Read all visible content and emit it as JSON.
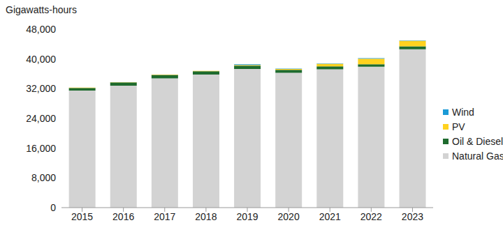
{
  "chart_data": {
    "type": "bar",
    "stacked": true,
    "ylabel": "Gigawatts-hours",
    "categories": [
      "2015",
      "2016",
      "2017",
      "2018",
      "2019",
      "2020",
      "2021",
      "2022",
      "2023"
    ],
    "series": [
      {
        "name": "Natural Gas",
        "color": "#d3d3d3",
        "values": [
          31500,
          32800,
          34800,
          35800,
          37300,
          36300,
          37200,
          37900,
          42600
        ]
      },
      {
        "name": "Oil & Diesel",
        "color": "#1e6b2e",
        "values": [
          700,
          900,
          900,
          900,
          900,
          800,
          800,
          700,
          800
        ]
      },
      {
        "name": "PV",
        "color": "#ffd21f",
        "values": [
          100,
          50,
          100,
          100,
          200,
          200,
          700,
          1500,
          1500
        ]
      },
      {
        "name": "Wind",
        "color": "#1b9ad6",
        "values": [
          0,
          0,
          0,
          0,
          200,
          100,
          100,
          100,
          100
        ]
      }
    ],
    "ylim": [
      0,
      48000
    ],
    "yticks": [
      0,
      {
        "value": 8000,
        "label": "8,000"
      },
      {
        "value": 16000,
        "label": "16,000"
      },
      {
        "value": 24000,
        "label": "24,000"
      },
      {
        "value": 32000,
        "label": "32,000"
      },
      {
        "value": 40000,
        "label": "40,000"
      },
      {
        "value": 48000,
        "label": "48,000"
      }
    ],
    "grid": false,
    "legend": "right"
  }
}
